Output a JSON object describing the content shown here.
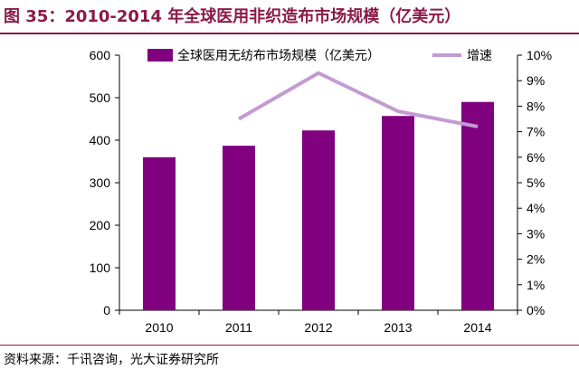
{
  "figure": {
    "title": "图 35：2010-2014 年全球医用非织造布市场规模（亿美元）",
    "source": "资料来源：千讯咨询，光大证券研究所"
  },
  "colors": {
    "bar": "#800080",
    "line": "#C39BD3",
    "title": "#8B1A4A",
    "axis": "#000000"
  },
  "chart_data": {
    "type": "bar",
    "categories": [
      "2010",
      "2011",
      "2012",
      "2013",
      "2014"
    ],
    "series": [
      {
        "name": "全球医用无纺布市场规模（亿美元）",
        "type": "bar",
        "axis": "left",
        "values": [
          360,
          387,
          423,
          457,
          490
        ]
      },
      {
        "name": "增速",
        "type": "line",
        "axis": "right",
        "values": [
          null,
          7.5,
          9.3,
          7.8,
          7.2
        ]
      }
    ],
    "ylim_left": [
      0,
      600
    ],
    "yticks_left": [
      "0",
      "100",
      "200",
      "300",
      "400",
      "500",
      "600"
    ],
    "ylim_right": [
      0,
      10
    ],
    "yticks_right": [
      "0%",
      "1%",
      "2%",
      "3%",
      "4%",
      "5%",
      "6%",
      "7%",
      "8%",
      "9%",
      "10%"
    ],
    "legend_position": "top",
    "grid": false
  }
}
